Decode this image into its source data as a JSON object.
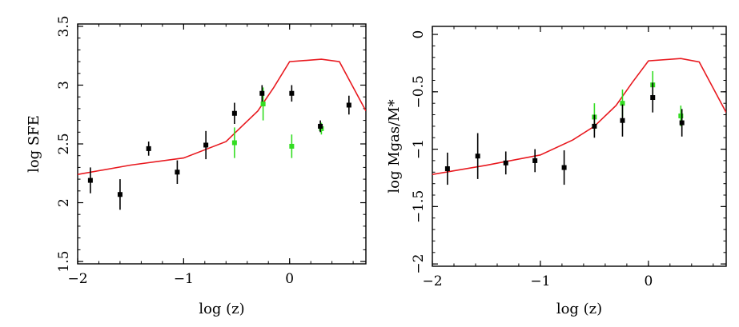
{
  "chart_data": [
    {
      "type": "line",
      "title": "",
      "xlabel": "log (z)",
      "ylabel": "log SFE",
      "xlim": [
        -2.0,
        0.72
      ],
      "ylim": [
        1.48,
        3.52
      ],
      "xticks": [
        {
          "value": -2,
          "label": "−2"
        },
        {
          "value": -1,
          "label": "−1"
        },
        {
          "value": 0,
          "label": "0"
        }
      ],
      "yticks": [
        {
          "value": 1.5,
          "label": "1.5"
        },
        {
          "value": 2,
          "label": "2"
        },
        {
          "value": 2.5,
          "label": "2.5"
        },
        {
          "value": 3,
          "label": "3"
        },
        {
          "value": 3.5,
          "label": "3.5"
        }
      ],
      "colors": {
        "model": "#e8191f",
        "black": "#000000",
        "green": "#33dd22"
      },
      "model_line": {
        "name": "model",
        "x": [
          -2.0,
          -1.5,
          -1.0,
          -0.6,
          -0.45,
          -0.3,
          -0.15,
          0.0,
          0.3,
          0.47,
          0.72
        ],
        "y": [
          2.24,
          2.32,
          2.38,
          2.52,
          2.65,
          2.78,
          2.98,
          3.2,
          3.22,
          3.2,
          2.78
        ]
      },
      "series": [
        {
          "name": "black points",
          "color": "black",
          "points": [
            {
              "x": -1.88,
              "y": 2.19,
              "err": 0.11
            },
            {
              "x": -1.6,
              "y": 2.07,
              "err": 0.13
            },
            {
              "x": -1.33,
              "y": 2.46,
              "err": 0.06
            },
            {
              "x": -1.06,
              "y": 2.26,
              "err": 0.1
            },
            {
              "x": -0.79,
              "y": 2.49,
              "err": 0.12
            },
            {
              "x": -0.52,
              "y": 2.76,
              "err": 0.09
            },
            {
              "x": -0.26,
              "y": 2.93,
              "err": 0.07
            },
            {
              "x": 0.02,
              "y": 2.93,
              "err": 0.07
            },
            {
              "x": 0.29,
              "y": 2.65,
              "err": 0.05
            },
            {
              "x": 0.56,
              "y": 2.83,
              "err": 0.08
            }
          ]
        },
        {
          "name": "green points",
          "color": "green",
          "points": [
            {
              "x": -0.52,
              "y": 2.51,
              "err": 0.13
            },
            {
              "x": -0.25,
              "y": 2.84,
              "err": 0.14
            },
            {
              "x": 0.02,
              "y": 2.48,
              "err": 0.1
            },
            {
              "x": 0.3,
              "y": 2.63,
              "err": 0.05
            }
          ]
        }
      ]
    },
    {
      "type": "line",
      "title": "",
      "xlabel": "log (z)",
      "ylabel": "log Mgas/M*",
      "xlim": [
        -2.0,
        0.72
      ],
      "ylim": [
        -2.02,
        0.07
      ],
      "xticks": [
        {
          "value": -2,
          "label": "−2"
        },
        {
          "value": -1,
          "label": "−1"
        },
        {
          "value": 0,
          "label": "0"
        }
      ],
      "yticks": [
        {
          "value": -2,
          "label": "−2"
        },
        {
          "value": -1.5,
          "label": "−1.5"
        },
        {
          "value": -1,
          "label": "−1"
        },
        {
          "value": -0.5,
          "label": "−0.5"
        },
        {
          "value": 0,
          "label": "0"
        }
      ],
      "colors": {
        "model": "#e8191f",
        "black": "#000000",
        "green": "#33dd22"
      },
      "model_line": {
        "name": "model",
        "x": [
          -2.0,
          -1.5,
          -1.0,
          -0.7,
          -0.5,
          -0.3,
          -0.15,
          0.0,
          0.3,
          0.47,
          0.72
        ],
        "y": [
          -1.22,
          -1.14,
          -1.05,
          -0.92,
          -0.8,
          -0.62,
          -0.42,
          -0.23,
          -0.21,
          -0.24,
          -0.68
        ]
      },
      "series": [
        {
          "name": "black points",
          "color": "black",
          "points": [
            {
              "x": -1.86,
              "y": -1.17,
              "err": 0.14
            },
            {
              "x": -1.58,
              "y": -1.06,
              "err": 0.2
            },
            {
              "x": -1.32,
              "y": -1.12,
              "err": 0.1
            },
            {
              "x": -1.05,
              "y": -1.1,
              "err": 0.1
            },
            {
              "x": -0.78,
              "y": -1.16,
              "err": 0.15
            },
            {
              "x": -0.5,
              "y": -0.8,
              "err": 0.1
            },
            {
              "x": -0.24,
              "y": -0.75,
              "err": 0.14
            },
            {
              "x": 0.04,
              "y": -0.55,
              "err": 0.13
            },
            {
              "x": 0.31,
              "y": -0.77,
              "err": 0.12
            }
          ]
        },
        {
          "name": "green points",
          "color": "green",
          "points": [
            {
              "x": -0.5,
              "y": -0.72,
              "err": 0.12
            },
            {
              "x": -0.24,
              "y": -0.6,
              "err": 0.12
            },
            {
              "x": 0.04,
              "y": -0.44,
              "err": 0.12
            },
            {
              "x": 0.3,
              "y": -0.71,
              "err": 0.09
            }
          ]
        }
      ]
    }
  ]
}
